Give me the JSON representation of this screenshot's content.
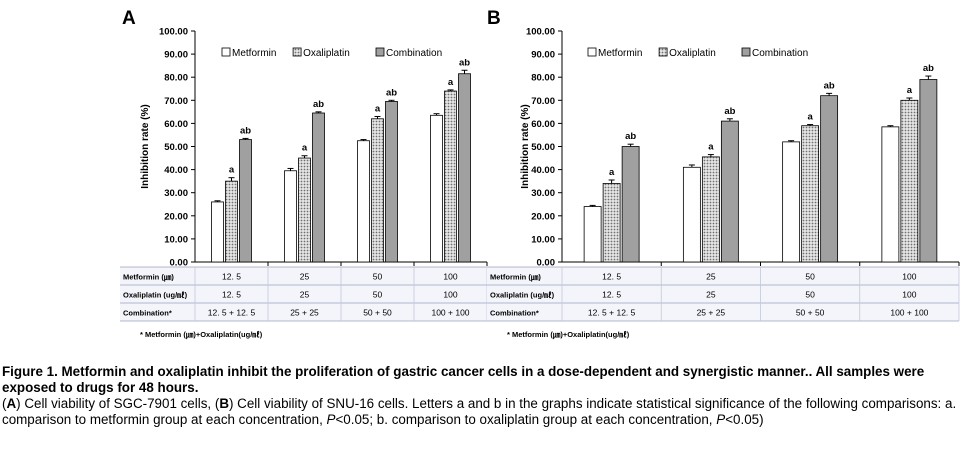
{
  "chart_data": [
    {
      "type": "bar",
      "panel": "A",
      "ylabel": "Inhibition rate (%)",
      "ylim": [
        0,
        100
      ],
      "yticks": [
        "0.00",
        "10.00",
        "20.00",
        "30.00",
        "40.00",
        "50.00",
        "60.00",
        "70.00",
        "80.00",
        "90.00",
        "100.00"
      ],
      "legend_position": "top",
      "categories": [
        "12.5",
        "25",
        "50",
        "100"
      ],
      "series": [
        {
          "name": "Metformin",
          "values": [
            26,
            39.5,
            52.5,
            63.5
          ],
          "errors": [
            0.5,
            1,
            0.5,
            0.7
          ],
          "labels": [
            "",
            "",
            "",
            ""
          ],
          "color": "#ffffff",
          "pattern": "none"
        },
        {
          "name": "Oxaliplatin",
          "values": [
            35,
            45,
            62,
            74
          ],
          "errors": [
            1.5,
            1,
            1,
            0.5
          ],
          "labels": [
            "a",
            "a",
            "a",
            "a"
          ],
          "color": "#d8d8d8",
          "pattern": "dots"
        },
        {
          "name": "Combination",
          "values": [
            53,
            64.5,
            69.5,
            81.5
          ],
          "errors": [
            0.5,
            0.5,
            0.5,
            1.5
          ],
          "labels": [
            "ab",
            "ab",
            "ab",
            "ab"
          ],
          "color": "#a0a0a0",
          "pattern": "none"
        }
      ],
      "table": {
        "rows": [
          {
            "label": "Metformin (㎛)",
            "cells": [
              "12. 5",
              "25",
              "50",
              "100"
            ]
          },
          {
            "label": "Oxaliplatin (ug/㎖)",
            "cells": [
              "12. 5",
              "25",
              "50",
              "100"
            ]
          },
          {
            "label": "Combination*",
            "cells": [
              "12. 5 + 12. 5",
              "25 + 25",
              "50 + 50",
              "100 + 100"
            ]
          }
        ],
        "footnote": "* Metformin (㎛)+Oxaliplatin(ug/㎖)"
      }
    },
    {
      "type": "bar",
      "panel": "B",
      "ylabel": "Inhibition rate (%)",
      "ylim": [
        0,
        100
      ],
      "yticks": [
        "0.00",
        "10.00",
        "20.00",
        "30.00",
        "40.00",
        "50.00",
        "60.00",
        "70.00",
        "80.00",
        "90.00",
        "100.00"
      ],
      "legend_position": "top",
      "categories": [
        "12.5",
        "25",
        "50",
        "100"
      ],
      "series": [
        {
          "name": "Metformin",
          "values": [
            24,
            41,
            52,
            58.5
          ],
          "errors": [
            0.5,
            1,
            0.5,
            0.5
          ],
          "labels": [
            "",
            "",
            "",
            ""
          ],
          "color": "#ffffff",
          "pattern": "none"
        },
        {
          "name": "Oxaliplatin",
          "values": [
            34,
            45.5,
            59,
            70
          ],
          "errors": [
            1.5,
            1,
            0.5,
            1
          ],
          "labels": [
            "a",
            "a",
            "a",
            "a"
          ],
          "color": "#d8d8d8",
          "pattern": "dots"
        },
        {
          "name": "Combination",
          "values": [
            50,
            61,
            72,
            79
          ],
          "errors": [
            1,
            1,
            1,
            1.5
          ],
          "labels": [
            "ab",
            "ab",
            "ab",
            "ab"
          ],
          "color": "#a0a0a0",
          "pattern": "none"
        }
      ],
      "table": {
        "rows": [
          {
            "label": "Metformin (㎛)",
            "cells": [
              "12. 5",
              "25",
              "50",
              "100"
            ]
          },
          {
            "label": "Oxaliplatin (ug/㎖)",
            "cells": [
              "12. 5",
              "25",
              "50",
              "100"
            ]
          },
          {
            "label": "Combination*",
            "cells": [
              "12. 5 + 12. 5",
              "25 + 25",
              "50 + 50",
              "100 + 100"
            ]
          }
        ],
        "footnote": "* Metformin (㎛)+Oxaliplatin(ug/㎖)"
      }
    }
  ],
  "caption": {
    "title": "Figure 1. Metformin and oxaliplatin inhibit the proliferation of gastric cancer cells in a dose-dependent and synergistic manner.. All samples were exposed to drugs for 48 hours.",
    "a_letter": "A",
    "a_text": "Cell viability of SGC-7901 cells,",
    "b_letter": "B",
    "b_text": "Cell viability of SNU-16 cells. Letters a and b in the graphs indicate statistical significance of the following comparisons: a. comparison to metformin group at each concentration,",
    "p1": "P",
    "p1_rest": "<0.05; b. comparison to oxaliplatin group at each concentration,",
    "p2": "P",
    "p2_rest": "<0.05)"
  }
}
